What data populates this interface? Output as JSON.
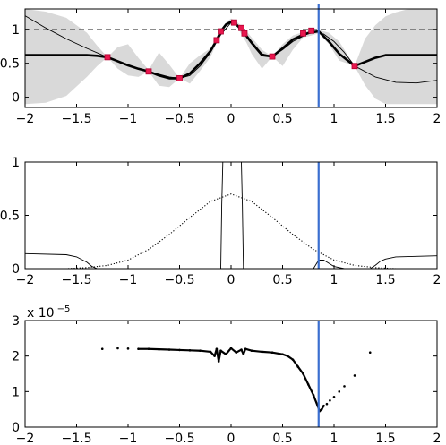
{
  "chart_data": [
    {
      "type": "line",
      "title": "",
      "xlabel": "",
      "ylabel": "",
      "xlim": [
        -2,
        2
      ],
      "ylim": [
        -0.15,
        1.3
      ],
      "x_ticks": [
        "−2",
        "−1.5",
        "−1",
        "−0.5",
        "0",
        "0.5",
        "1",
        "1.5",
        "2"
      ],
      "x_tick_values": [
        -2,
        -1.5,
        -1,
        -0.5,
        0,
        0.5,
        1,
        1.5,
        2
      ],
      "y_ticks": [
        "0",
        "0.5",
        "1"
      ],
      "y_tick_values": [
        0,
        0.5,
        1
      ],
      "grid": false,
      "legend": "none",
      "vertical_line_x": 0.85,
      "reference_level": 1,
      "series": [
        {
          "role": "uncertainty-band",
          "color": "#d9d9d9",
          "x": [
            -2,
            -1.8,
            -1.6,
            -1.4,
            -1.3,
            -1.2,
            -1.1,
            -1.0,
            -0.9,
            -0.8,
            -0.7,
            -0.6,
            -0.5,
            -0.4,
            -0.3,
            -0.2,
            -0.14,
            -0.1,
            -0.05,
            0.0,
            0.05,
            0.1,
            0.15,
            0.2,
            0.3,
            0.4,
            0.5,
            0.6,
            0.7,
            0.76,
            0.85,
            0.95,
            1.05,
            1.2,
            1.3,
            1.4,
            1.5,
            1.6,
            1.7,
            1.8,
            2.0
          ],
          "upper": [
            1.3,
            1.26,
            1.17,
            0.95,
            0.76,
            0.59,
            0.74,
            0.78,
            0.58,
            0.4,
            0.66,
            0.48,
            0.28,
            0.5,
            0.62,
            0.72,
            0.84,
            0.97,
            1.1,
            1.16,
            1.12,
            1.05,
            0.97,
            0.88,
            0.7,
            0.6,
            0.78,
            0.91,
            0.96,
            0.98,
            0.99,
            0.95,
            0.82,
            0.46,
            0.86,
            1.06,
            1.19,
            1.25,
            1.29,
            1.3,
            1.3
          ],
          "lower": [
            -0.1,
            -0.08,
            0.02,
            0.3,
            0.46,
            0.59,
            0.42,
            0.32,
            0.3,
            0.38,
            0.17,
            0.15,
            0.28,
            0.2,
            0.39,
            0.59,
            0.8,
            0.96,
            1.09,
            1.06,
            1.06,
            0.93,
            0.8,
            0.64,
            0.42,
            0.6,
            0.46,
            0.7,
            0.88,
            0.9,
            0.94,
            0.78,
            0.54,
            0.46,
            0.18,
            -0.02,
            -0.1,
            -0.1,
            -0.1,
            -0.1,
            -0.1
          ]
        },
        {
          "role": "posterior-mean",
          "color": "#000000",
          "x": [
            -2,
            -1.8,
            -1.6,
            -1.4,
            -1.3,
            -1.2,
            -1.1,
            -1.0,
            -0.9,
            -0.8,
            -0.7,
            -0.6,
            -0.5,
            -0.4,
            -0.3,
            -0.2,
            -0.14,
            -0.1,
            -0.05,
            0.0,
            0.05,
            0.1,
            0.15,
            0.2,
            0.3,
            0.4,
            0.5,
            0.6,
            0.7,
            0.76,
            0.85,
            0.95,
            1.05,
            1.2,
            1.3,
            1.4,
            1.5,
            1.6,
            1.7,
            1.8,
            2.0
          ],
          "y": [
            0.62,
            0.62,
            0.62,
            0.62,
            0.61,
            0.59,
            0.53,
            0.47,
            0.42,
            0.38,
            0.32,
            0.28,
            0.28,
            0.35,
            0.5,
            0.68,
            0.84,
            0.97,
            1.07,
            1.11,
            1.07,
            1.0,
            0.9,
            0.8,
            0.62,
            0.6,
            0.72,
            0.85,
            0.92,
            0.95,
            0.97,
            0.82,
            0.64,
            0.46,
            0.52,
            0.58,
            0.62,
            0.62,
            0.62,
            0.62,
            0.62
          ]
        },
        {
          "role": "true-function",
          "color": "#000000",
          "x": [
            -2,
            -1.8,
            -1.6,
            -1.4,
            -1.2,
            -1.0,
            -0.8,
            -0.6,
            -0.5,
            -0.4,
            -0.3,
            -0.2,
            -0.1,
            0.0,
            0.1,
            0.2,
            0.3,
            0.4,
            0.5,
            0.6,
            0.7,
            0.8,
            0.9,
            1.0,
            1.1,
            1.2,
            1.4,
            1.6,
            1.8,
            2.0
          ],
          "y": [
            1.2,
            1.02,
            0.86,
            0.72,
            0.59,
            0.47,
            0.38,
            0.3,
            0.28,
            0.32,
            0.46,
            0.66,
            0.92,
            1.1,
            1.02,
            0.82,
            0.64,
            0.6,
            0.7,
            0.82,
            0.9,
            0.97,
            0.93,
            0.82,
            0.66,
            0.46,
            0.3,
            0.22,
            0.21,
            0.25
          ]
        },
        {
          "role": "observations",
          "color": "#e8174e",
          "x": [
            -1.2,
            -0.8,
            -0.5,
            -0.14,
            -0.1,
            0.03,
            0.1,
            0.13,
            0.4,
            0.7,
            0.78,
            1.2
          ],
          "y": [
            0.59,
            0.38,
            0.28,
            0.84,
            0.97,
            1.1,
            1.02,
            0.94,
            0.6,
            0.94,
            0.98,
            0.46
          ]
        }
      ]
    },
    {
      "type": "line",
      "title": "",
      "xlabel": "",
      "ylabel": "",
      "xlim": [
        -2,
        2
      ],
      "ylim": [
        0,
        1
      ],
      "x_ticks": [
        "−2",
        "−1.5",
        "−1",
        "−0.5",
        "0",
        "0.5",
        "1",
        "1.5",
        "2"
      ],
      "x_tick_values": [
        -2,
        -1.5,
        -1,
        -0.5,
        0,
        0.5,
        1,
        1.5,
        2
      ],
      "y_ticks": [
        "0",
        "0.5",
        "1"
      ],
      "y_tick_values": [
        0,
        0.5,
        1
      ],
      "grid": false,
      "legend": "none",
      "vertical_line_x": 0.85,
      "series": [
        {
          "role": "solid-curve",
          "color": "#000000",
          "x": [
            -2,
            -1.6,
            -1.5,
            -1.4,
            -1.35,
            -1.3,
            -1.2,
            -0.5,
            -0.1,
            -0.09,
            -0.08,
            0.1,
            0.11,
            0.12,
            0.8,
            0.85,
            0.9,
            1.0,
            1.1,
            1.3,
            1.35,
            1.4,
            1.45,
            1.5,
            1.6,
            2.0
          ],
          "y": [
            0.14,
            0.13,
            0.11,
            0.06,
            0.02,
            0.0,
            0.0,
            0.0,
            0.0,
            0.6,
            1.0,
            1.0,
            0.6,
            0.0,
            0.0,
            0.08,
            0.08,
            0.02,
            0.0,
            0.0,
            0.0,
            0.03,
            0.07,
            0.09,
            0.11,
            0.12
          ]
        },
        {
          "role": "dotted-curve",
          "color": "#000000",
          "x": [
            -2,
            -1.8,
            -1.6,
            -1.4,
            -1.2,
            -1.0,
            -0.8,
            -0.6,
            -0.4,
            -0.2,
            0.0,
            0.2,
            0.4,
            0.6,
            0.8,
            1.0,
            1.2,
            1.4,
            1.6,
            1.8,
            2.0
          ],
          "y": [
            0.0,
            0.0,
            0.0,
            0.01,
            0.03,
            0.08,
            0.18,
            0.32,
            0.48,
            0.63,
            0.7,
            0.63,
            0.48,
            0.32,
            0.18,
            0.08,
            0.03,
            0.01,
            0.0,
            0.0,
            0.0
          ]
        }
      ]
    },
    {
      "type": "scatter",
      "title": "",
      "xlabel": "",
      "ylabel": "",
      "y_scale_label": "x 10",
      "y_scale_exponent": "−5",
      "xlim": [
        -2,
        2
      ],
      "ylim": [
        0,
        3
      ],
      "x_ticks": [
        "−2",
        "−1.5",
        "−1",
        "−0.5",
        "0",
        "0.5",
        "1",
        "1.5",
        "2"
      ],
      "x_tick_values": [
        -2,
        -1.5,
        -1,
        -0.5,
        0,
        0.5,
        1,
        1.5,
        2
      ],
      "y_ticks": [
        "0",
        "1",
        "2",
        "3"
      ],
      "y_tick_values": [
        0,
        1,
        2,
        3
      ],
      "grid": false,
      "legend": "none",
      "vertical_line_x": 0.85,
      "series": [
        {
          "role": "samples",
          "color": "#000000",
          "x": [
            -1.25,
            -1.1,
            -1.0,
            -0.9,
            -0.8,
            -0.7,
            -0.6,
            -0.5,
            -0.4,
            -0.3,
            -0.2,
            -0.16,
            -0.14,
            -0.12,
            -0.1,
            -0.05,
            0.0,
            0.05,
            0.1,
            0.12,
            0.14,
            0.2,
            0.3,
            0.4,
            0.5,
            0.55,
            0.6,
            0.65,
            0.7,
            0.75,
            0.8,
            0.84,
            0.86,
            0.88,
            0.9,
            0.93,
            0.96,
            1.0,
            1.05,
            1.1,
            1.2,
            1.35
          ],
          "y": [
            2.2,
            2.22,
            2.21,
            2.2,
            2.2,
            2.19,
            2.18,
            2.17,
            2.16,
            2.15,
            2.12,
            2.0,
            2.2,
            1.85,
            2.15,
            2.05,
            2.22,
            2.1,
            2.18,
            2.05,
            2.2,
            2.15,
            2.12,
            2.1,
            2.05,
            2.0,
            1.9,
            1.7,
            1.5,
            1.2,
            0.9,
            0.6,
            0.45,
            0.5,
            0.6,
            0.65,
            0.75,
            0.85,
            1.0,
            1.15,
            1.45,
            2.1
          ]
        }
      ]
    }
  ]
}
